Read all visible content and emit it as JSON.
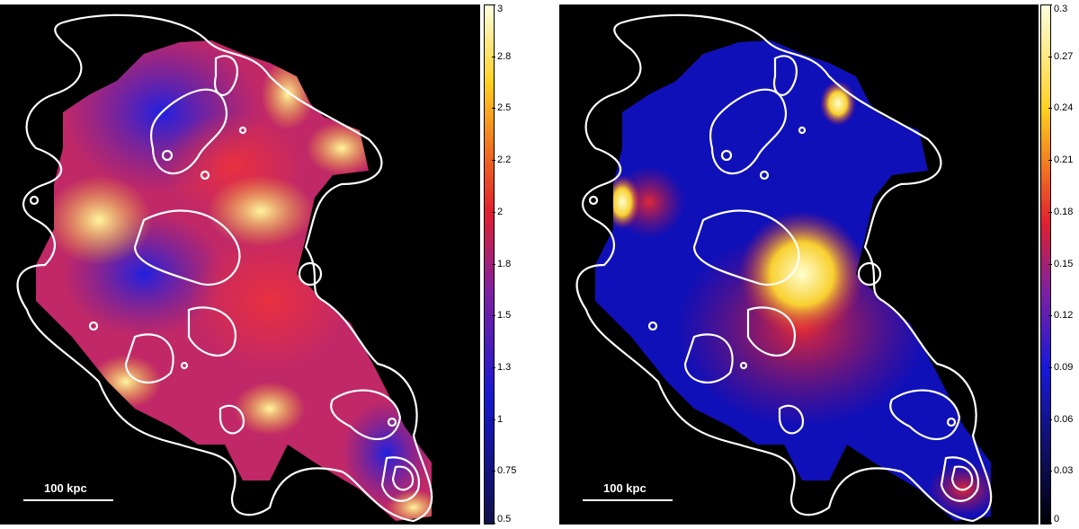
{
  "panels": [
    {
      "id": "left",
      "scalebar_label": "100 kpc",
      "colormap": "blue-red-yellow-white",
      "colorbar_ticks": [
        "3",
        "2.8",
        "2.5",
        "2.2",
        "2",
        "1.8",
        "1.5",
        "1.3",
        "1",
        "0.75",
        "0.5"
      ]
    },
    {
      "id": "right",
      "scalebar_label": "100 kpc",
      "colormap": "black-blue-red-yellow-white",
      "colorbar_ticks": [
        "0.3",
        "0.27",
        "0.24",
        "0.21",
        "0.18",
        "0.15",
        "0.12",
        "0.09",
        "0.06",
        "0.03",
        "0"
      ]
    }
  ],
  "colors": {
    "background": "#000000",
    "contours": "#ffffff",
    "low": "#1010e0",
    "mid": "#e0203a",
    "high": "#ffe020",
    "max": "#ffffff"
  }
}
